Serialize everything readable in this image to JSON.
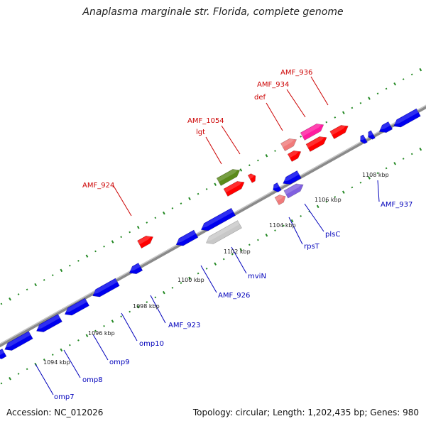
{
  "title": "Anaplasma marginale str. Florida, complete genome",
  "footer": {
    "accession": "Accession: NC_012026",
    "topology": "Topology: circular; Length: 1,202,435 bp; Genes: 980"
  },
  "colors": {
    "backbone": "#999999",
    "forward_gene": "#ff0000",
    "reverse_gene": "#0000ee",
    "forward_label": "#cc0000",
    "reverse_label": "#0000bb",
    "gc_dots": "#228822"
  },
  "ticks": [
    {
      "label": "1094 kbp"
    },
    {
      "label": "1096 kbp"
    },
    {
      "label": "1098 kbp"
    },
    {
      "label": "1100 kbp"
    },
    {
      "label": "1102 kbp"
    },
    {
      "label": "1104 kbp"
    },
    {
      "label": "1106 kbp"
    },
    {
      "label": "1108 kbp"
    }
  ],
  "gene_labels_forward": [
    "AMF_924",
    "lgt",
    "AMF_1054",
    "def",
    "AMF_934",
    "AMF_936"
  ],
  "gene_labels_reverse": [
    "omp7",
    "omp8",
    "omp9",
    "omp10",
    "AMF_923",
    "AMF_926",
    "mviN",
    "rpsT",
    "plsC",
    "AMF_937"
  ]
}
